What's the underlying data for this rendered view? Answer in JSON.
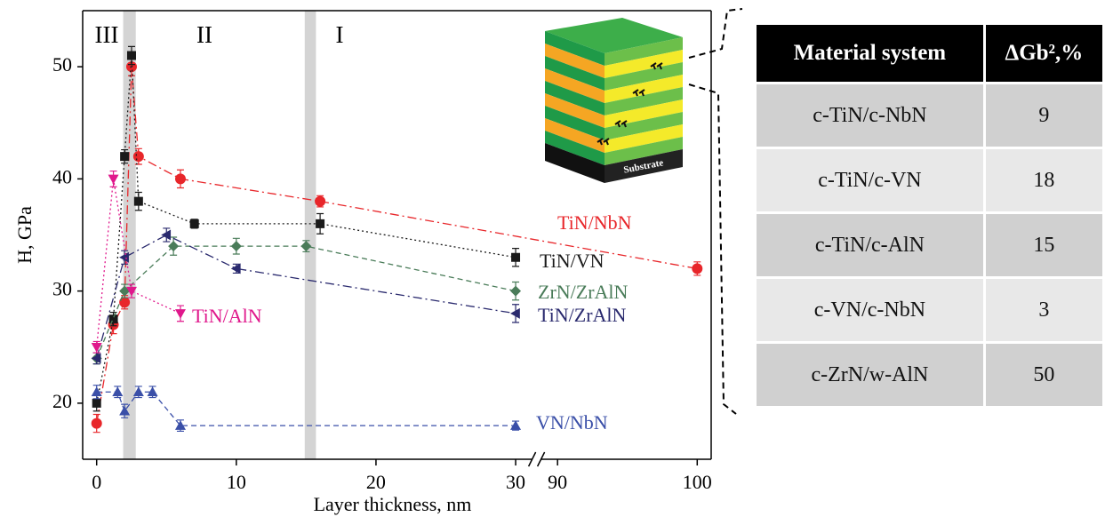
{
  "chart_data": {
    "type": "line",
    "ylabel": "H, GPa",
    "xlabel": "Layer thickness, nm",
    "xlim": [
      -1,
      101
    ],
    "xbreak": [
      31.5,
      88.5
    ],
    "xticks": [
      0,
      10,
      20,
      30,
      90,
      100
    ],
    "ylim": [
      15,
      55
    ],
    "yticks": [
      20,
      30,
      40,
      50
    ],
    "regions": [
      "III",
      "II",
      "I"
    ],
    "shaded_bands": [
      [
        1.9,
        2.8
      ],
      [
        14.9,
        15.7
      ]
    ],
    "series": [
      {
        "name": "TiN/NbN",
        "color": "#e8262a",
        "marker": "circle",
        "linestyle": "dashdot",
        "x": [
          0,
          1.2,
          2,
          2.5,
          3,
          6,
          16,
          100
        ],
        "values": [
          18.2,
          27,
          29,
          50,
          42,
          40,
          38,
          32
        ],
        "errors": [
          0.8,
          0.8,
          0.6,
          0.8,
          0.7,
          0.8,
          0.5,
          0.6
        ]
      },
      {
        "name": "TiN/VN",
        "color": "#1a1a1a",
        "marker": "square",
        "linestyle": "dotted",
        "x": [
          0,
          1.2,
          2,
          2.5,
          3,
          7,
          16,
          30
        ],
        "values": [
          20,
          27.5,
          42,
          51,
          38,
          36,
          36,
          33
        ],
        "errors": [
          0.7,
          0.6,
          0.6,
          0.8,
          0.8,
          0.4,
          0.9,
          0.8
        ]
      },
      {
        "name": "ZrN/ZrAlN",
        "color": "#4a7c59",
        "marker": "diamond",
        "linestyle": "dashed",
        "x": [
          0,
          2,
          5.5,
          10,
          15,
          30
        ],
        "values": [
          24,
          30,
          34,
          34,
          34,
          30
        ],
        "errors": [
          0.5,
          0.6,
          0.8,
          0.7,
          0.5,
          0.8
        ]
      },
      {
        "name": "TiN/ZrAlN",
        "color": "#2a2a6e",
        "marker": "triangle-left",
        "linestyle": "dashdot",
        "x": [
          0,
          2,
          5,
          10,
          30
        ],
        "values": [
          24,
          33,
          35,
          32,
          28
        ],
        "errors": [
          0.5,
          0.6,
          0.6,
          0.4,
          0.8
        ]
      },
      {
        "name": "TiN/AlN",
        "color": "#e0188c",
        "marker": "triangle-down",
        "linestyle": "dotted",
        "x": [
          0,
          1.2,
          2.5,
          6
        ],
        "values": [
          25,
          40,
          30,
          28
        ],
        "errors": [
          0.5,
          0.7,
          0.6,
          0.7
        ]
      },
      {
        "name": "VN/NbN",
        "color": "#3a4fa8",
        "marker": "triangle-up",
        "linestyle": "dashed",
        "x": [
          0,
          1.5,
          2,
          3,
          4,
          6,
          30
        ],
        "values": [
          21,
          21,
          19.3,
          21,
          21,
          18,
          18
        ],
        "errors": [
          0.6,
          0.5,
          0.6,
          0.5,
          0.5,
          0.5,
          0.4
        ]
      }
    ]
  },
  "schematic": {
    "label": "Substrate"
  },
  "table": {
    "header": [
      "Material system",
      "ΔGb²,%"
    ],
    "rows": [
      [
        "c-TiN/c-NbN",
        "9"
      ],
      [
        "c-TiN/c-VN",
        "18"
      ],
      [
        "c-TiN/c-AlN",
        "15"
      ],
      [
        "c-VN/c-NbN",
        "3"
      ],
      [
        "c-ZrN/w-AlN",
        "50"
      ]
    ]
  }
}
